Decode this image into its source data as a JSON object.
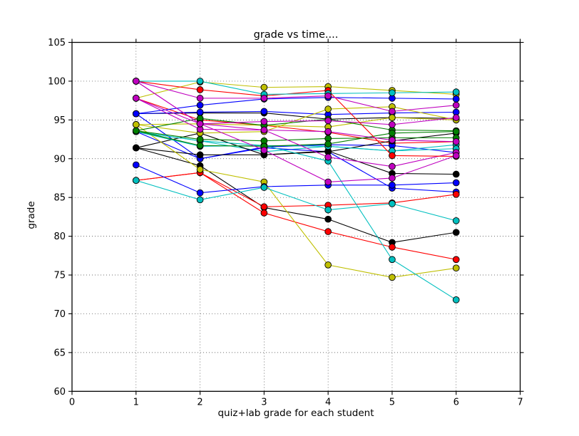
{
  "title": "grade vs time....",
  "xlabel": "quiz+lab grade for each student",
  "ylabel": "grade",
  "chart_data": {
    "type": "line",
    "xlim": [
      0,
      7
    ],
    "ylim": [
      60,
      105
    ],
    "xticks": [
      0,
      1,
      2,
      3,
      4,
      5,
      6,
      7
    ],
    "yticks": [
      60,
      65,
      70,
      75,
      80,
      85,
      90,
      95,
      100,
      105
    ],
    "grid": "dotted",
    "legend": "none",
    "marker": "circle",
    "x": [
      1,
      2,
      3,
      4,
      5,
      6
    ],
    "series": [
      {
        "id": "student-1",
        "color_name": "black",
        "color": "#000000",
        "values": [
          95.8,
          95.9,
          95.9,
          95.1,
          95.3,
          95.2
        ]
      },
      {
        "id": "student-2",
        "color_name": "red",
        "color": "#ff0000",
        "values": [
          97.8,
          95.0,
          94.3,
          93.4,
          92.0,
          92.2
        ]
      },
      {
        "id": "student-3",
        "color_name": "yellow",
        "color": "#bfbf00",
        "values": [
          97.8,
          99.9,
          99.2,
          99.3,
          98.8,
          98.3
        ]
      },
      {
        "id": "student-4",
        "color_name": "blue",
        "color": "#0000ff",
        "values": [
          95.8,
          96.9,
          97.7,
          97.9,
          97.8,
          97.7
        ]
      },
      {
        "id": "student-5",
        "color_name": "blue",
        "color": "#0000ff",
        "values": [
          95.8,
          96.0,
          96.1,
          95.7,
          95.9,
          96.0
        ]
      },
      {
        "id": "student-6",
        "color_name": "blue",
        "color": "#0000ff",
        "values": [
          95.8,
          90.0,
          91.5,
          91.8,
          91.7,
          90.8
        ]
      },
      {
        "id": "student-7",
        "color_name": "cyan",
        "color": "#00bfbf",
        "values": [
          93.5,
          92.3,
          90.9,
          91.6,
          91.0,
          91.8
        ]
      },
      {
        "id": "student-8",
        "color_name": "blue",
        "color": "#0000ff",
        "values": [
          93.5,
          90.0,
          91.4,
          90.9,
          86.2,
          85.7
        ]
      },
      {
        "id": "student-9",
        "color_name": "black",
        "color": "#000000",
        "values": [
          91.4,
          89.1,
          83.7,
          82.2,
          79.2,
          80.5
        ]
      },
      {
        "id": "student-10",
        "color_name": "black",
        "color": "#000000",
        "values": [
          91.4,
          90.5,
          90.5,
          91.0,
          88.1,
          88.0
        ]
      },
      {
        "id": "student-11",
        "color_name": "black",
        "color": "#000000",
        "values": [
          91.4,
          93.3,
          90.5,
          90.9,
          92.3,
          93.3
        ]
      },
      {
        "id": "student-12",
        "color_name": "red",
        "color": "#ff0000",
        "values": [
          87.2,
          88.2,
          83.0,
          80.6,
          78.6,
          77.0
        ]
      },
      {
        "id": "student-13",
        "color_name": "red",
        "color": "#ff0000",
        "values": [
          87.2,
          88.2,
          83.8,
          84.0,
          84.3,
          85.4
        ]
      },
      {
        "id": "student-14",
        "color_name": "yellow",
        "color": "#bfbf00",
        "values": [
          94.4,
          93.3,
          93.5,
          96.4,
          96.7,
          95.0
        ]
      },
      {
        "id": "student-15",
        "color_name": "yellow",
        "color": "#bfbf00",
        "values": [
          94.4,
          88.6,
          87.0,
          76.3,
          74.7,
          75.9
        ]
      },
      {
        "id": "student-16",
        "color_name": "yellow",
        "color": "#bfbf00",
        "values": [
          94.4,
          94.5,
          94.3,
          94.1,
          95.3,
          95.0
        ]
      },
      {
        "id": "student-17",
        "color_name": "cyan",
        "color": "#00bfbf",
        "values": [
          93.5,
          91.6,
          91.7,
          89.7,
          77.0,
          71.8
        ]
      },
      {
        "id": "student-18",
        "color_name": "cyan",
        "color": "#00bfbf",
        "values": [
          93.5,
          92.3,
          91.7,
          91.6,
          91.0,
          91.3
        ]
      },
      {
        "id": "student-19",
        "color_name": "green",
        "color": "#007f00",
        "values": [
          93.6,
          95.2,
          94.3,
          95.1,
          93.7,
          93.6
        ]
      },
      {
        "id": "student-20",
        "color_name": "green",
        "color": "#007f00",
        "values": [
          93.6,
          92.5,
          92.3,
          92.6,
          92.7,
          92.7
        ]
      },
      {
        "id": "student-21",
        "color_name": "green",
        "color": "#007f00",
        "values": [
          93.6,
          91.7,
          91.6,
          91.9,
          93.3,
          93.5
        ]
      },
      {
        "id": "student-22",
        "color_name": "blue",
        "color": "#0000ff",
        "values": [
          89.2,
          85.6,
          86.4,
          86.6,
          86.6,
          86.9
        ]
      },
      {
        "id": "student-23",
        "color_name": "magenta",
        "color": "#bf00bf",
        "values": [
          100.0,
          94.5,
          93.7,
          90.2,
          89.0,
          90.8
        ]
      },
      {
        "id": "student-24",
        "color_name": "magenta",
        "color": "#bf00bf",
        "values": [
          100.0,
          94.5,
          94.8,
          94.9,
          94.4,
          95.3
        ]
      },
      {
        "id": "student-25",
        "color_name": "red",
        "color": "#ff0000",
        "values": [
          100.0,
          98.9,
          98.1,
          98.8,
          90.4,
          90.3
        ]
      },
      {
        "id": "student-26",
        "color_name": "cyan",
        "color": "#00bfbf",
        "values": [
          87.2,
          84.7,
          86.3,
          83.4,
          84.2,
          82.0
        ]
      },
      {
        "id": "student-27",
        "color_name": "cyan",
        "color": "#00bfbf",
        "values": [
          100.0,
          100.0,
          98.3,
          98.4,
          98.5,
          98.6
        ]
      },
      {
        "id": "student-28",
        "color_name": "magenta",
        "color": "#bf00bf",
        "values": [
          100.0,
          97.8,
          97.8,
          98.1,
          96.1,
          96.9
        ]
      },
      {
        "id": "student-29",
        "color_name": "magenta",
        "color": "#bf00bf",
        "values": [
          97.8,
          93.8,
          93.7,
          93.5,
          92.4,
          92.2
        ]
      },
      {
        "id": "student-30",
        "color_name": "magenta",
        "color": "#bf00bf",
        "values": [
          97.8,
          94.5,
          91.1,
          87.0,
          87.5,
          90.4
        ]
      }
    ]
  }
}
